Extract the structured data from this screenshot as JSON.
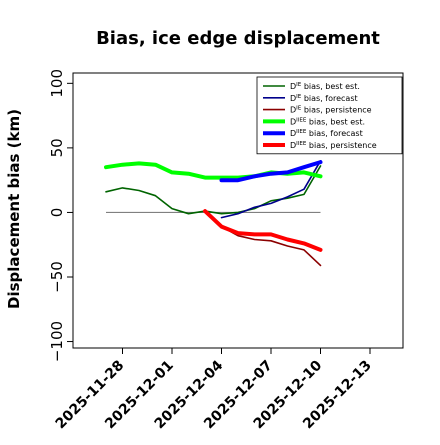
{
  "chart_data": {
    "type": "line",
    "title": "Bias, ice edge displacement",
    "xlabel": "",
    "ylabel": "Displacement bias (km)",
    "xlim": [
      "2025-11-25",
      "2025-12-15"
    ],
    "ylim": [
      -105,
      108
    ],
    "y_ticks": [
      -100,
      -50,
      0,
      50,
      100
    ],
    "x_ticks": [
      {
        "date": "2025-11-28",
        "label": "2025-11-28",
        "color": "#000000"
      },
      {
        "date": "2025-12-01",
        "label": "2025-12-01",
        "color": "#000000"
      },
      {
        "date": "2025-12-04",
        "label": "2025-12-04",
        "color": "#228b22"
      },
      {
        "date": "2025-12-07",
        "label": "2025-12-07",
        "color": "#000000"
      },
      {
        "date": "2025-12-10",
        "label": "2025-12-10",
        "color": "#000000"
      },
      {
        "date": "2025-12-13",
        "label": "2025-12-13",
        "color": "#000000"
      }
    ],
    "zero_line": {
      "start": "2025-11-27",
      "end": "2025-12-10",
      "y": 0,
      "color": "#808080"
    },
    "legend_position": "top-right",
    "series": [
      {
        "name": "D^IE bias, best est.",
        "label_base": "D",
        "label_sup": "IE",
        "label_rest": " bias, best est.",
        "color": "#006400",
        "width": 1.6,
        "x": [
          "2025-11-27",
          "2025-11-28",
          "2025-11-29",
          "2025-11-30",
          "2025-12-01",
          "2025-12-02",
          "2025-12-03",
          "2025-12-04",
          "2025-12-05",
          "2025-12-06",
          "2025-12-07",
          "2025-12-08",
          "2025-12-09",
          "2025-12-10"
        ],
        "values": [
          16,
          19,
          17,
          13,
          3,
          -1,
          1,
          -1,
          0,
          3,
          9,
          11,
          14,
          36
        ]
      },
      {
        "name": "D^IE bias, forecast",
        "label_base": "D",
        "label_sup": "IE",
        "label_rest": " bias, forecast",
        "color": "#00008b",
        "width": 1.6,
        "x": [
          "2025-12-04",
          "2025-12-05",
          "2025-12-06",
          "2025-12-07",
          "2025-12-08",
          "2025-12-09",
          "2025-12-10"
        ],
        "values": [
          -4,
          -1,
          4,
          7,
          12,
          18,
          40
        ]
      },
      {
        "name": "D^IE bias, persistence",
        "label_base": "D",
        "label_sup": "IE",
        "label_rest": " bias, persistence",
        "color": "#8b0000",
        "width": 1.6,
        "x": [
          "2025-12-03",
          "2025-12-04",
          "2025-12-05",
          "2025-12-06",
          "2025-12-07",
          "2025-12-08",
          "2025-12-09",
          "2025-12-10"
        ],
        "values": [
          1,
          -11,
          -18,
          -21,
          -22,
          -26,
          -29,
          -41
        ]
      },
      {
        "name": "D^IIEE bias, best est.",
        "label_base": "D",
        "label_sup": "IIEE",
        "label_rest": " bias, best est.",
        "color": "#00ff00",
        "width": 4,
        "x": [
          "2025-11-27",
          "2025-11-28",
          "2025-11-29",
          "2025-11-30",
          "2025-12-01",
          "2025-12-02",
          "2025-12-03",
          "2025-12-04",
          "2025-12-05",
          "2025-12-06",
          "2025-12-07",
          "2025-12-08",
          "2025-12-09",
          "2025-12-10"
        ],
        "values": [
          35,
          37,
          38,
          37,
          31,
          30,
          27,
          27,
          27,
          28,
          31,
          30,
          31,
          28
        ]
      },
      {
        "name": "D^IIEE bias, forecast",
        "label_base": "D",
        "label_sup": "IIEE",
        "label_rest": " bias, forecast",
        "color": "#0000ff",
        "width": 4,
        "x": [
          "2025-12-04",
          "2025-12-05",
          "2025-12-06",
          "2025-12-07",
          "2025-12-08",
          "2025-12-09",
          "2025-12-10"
        ],
        "values": [
          25,
          25,
          28,
          30,
          31,
          35,
          39
        ]
      },
      {
        "name": "D^IIEE bias, persistence",
        "label_base": "D",
        "label_sup": "IIEE",
        "label_rest": " bias, persistence",
        "color": "#ff0000",
        "width": 4,
        "x": [
          "2025-12-03",
          "2025-12-04",
          "2025-12-05",
          "2025-12-06",
          "2025-12-07",
          "2025-12-08",
          "2025-12-09",
          "2025-12-10"
        ],
        "values": [
          1,
          -11,
          -16,
          -17,
          -17,
          -21,
          -24,
          -29
        ]
      }
    ]
  }
}
